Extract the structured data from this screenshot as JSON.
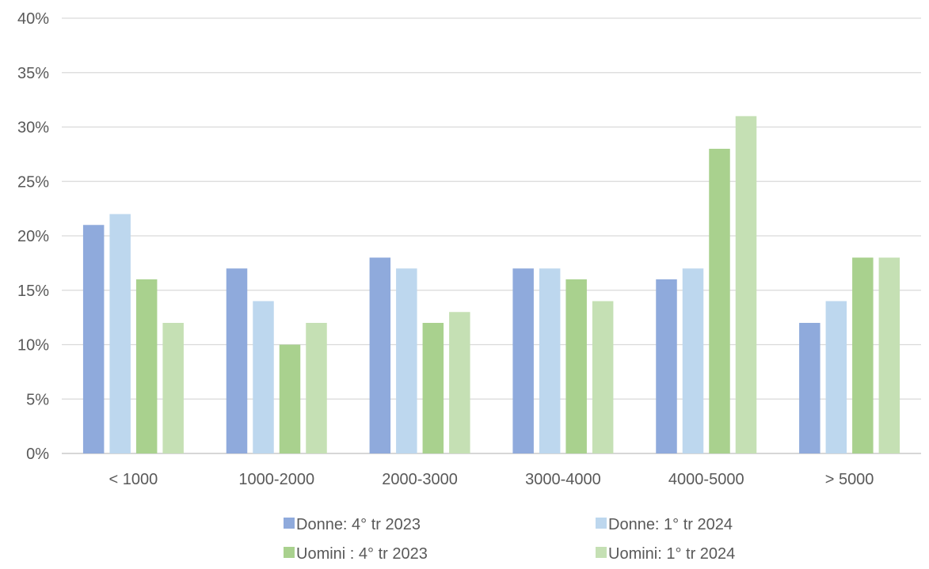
{
  "chart_data": {
    "type": "bar",
    "title": "",
    "xlabel": "",
    "ylabel": "",
    "ylim": [
      0,
      40
    ],
    "yticks": [
      0,
      5,
      10,
      15,
      20,
      25,
      30,
      35,
      40
    ],
    "ytick_suffix": "%",
    "grid": true,
    "legend_position": "bottom",
    "categories": [
      "< 1000",
      "1000-2000",
      "2000-3000",
      "3000-4000",
      "4000-5000",
      "> 5000"
    ],
    "series": [
      {
        "name": "Donne: 4° tr 2023",
        "color": "#8faadc",
        "values": [
          21,
          17,
          18,
          17,
          16,
          12
        ]
      },
      {
        "name": "Donne: 1° tr 2024",
        "color": "#bdd7ee",
        "values": [
          22,
          14,
          17,
          17,
          17,
          14
        ]
      },
      {
        "name": "Uomini : 4° tr 2023",
        "color": "#a9d18e",
        "values": [
          16,
          10,
          12,
          16,
          28,
          18
        ]
      },
      {
        "name": "Uomini: 1° tr 2024",
        "color": "#c5e0b4",
        "values": [
          12,
          12,
          13,
          14,
          31,
          18
        ]
      }
    ]
  }
}
